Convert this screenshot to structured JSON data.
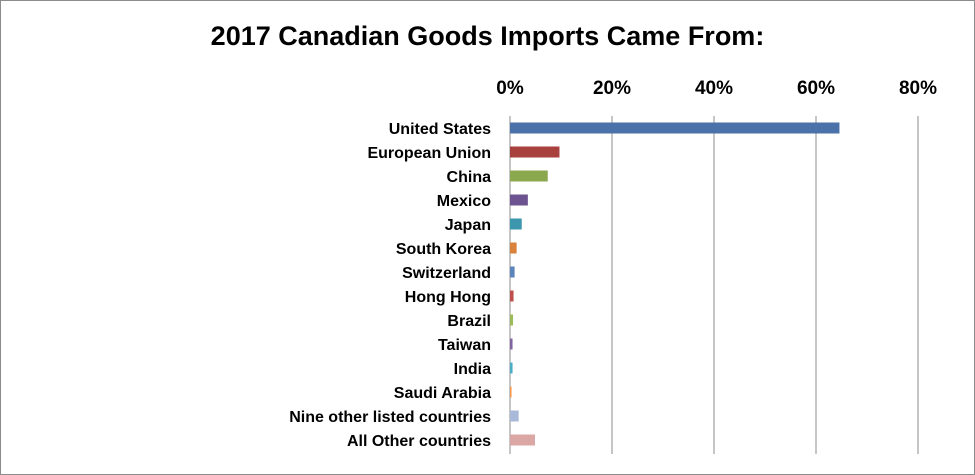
{
  "chart_data": {
    "type": "bar",
    "orientation": "horizontal",
    "title": "2017 Canadian Goods Imports Came From:",
    "xaxis_position": "top",
    "xlim": [
      0,
      80
    ],
    "xticks": [
      0,
      20,
      40,
      60,
      80
    ],
    "xtick_labels": [
      "0%",
      "20%",
      "40%",
      "60%",
      "80%"
    ],
    "grid": true,
    "legend": "none",
    "categories": [
      "United States",
      "European Union",
      "China",
      "Mexico",
      "Japan",
      "South Korea",
      "Switzerland",
      "Hong Hong",
      "Brazil",
      "Taiwan",
      "India",
      "Saudi Arabia",
      "Nine other listed countries",
      "All Other countries"
    ],
    "values": [
      64.6,
      9.7,
      7.4,
      3.5,
      2.3,
      1.3,
      0.9,
      0.7,
      0.6,
      0.5,
      0.5,
      0.3,
      1.7,
      4.9
    ],
    "colors": [
      "#4a72a8",
      "#a8403d",
      "#8aa94e",
      "#6d5491",
      "#3c96ad",
      "#d8823c",
      "#5b84b8",
      "#c0504d",
      "#9bbb59",
      "#8064a2",
      "#4bacc6",
      "#f79646",
      "#a9b9d9",
      "#dba7a5"
    ]
  }
}
